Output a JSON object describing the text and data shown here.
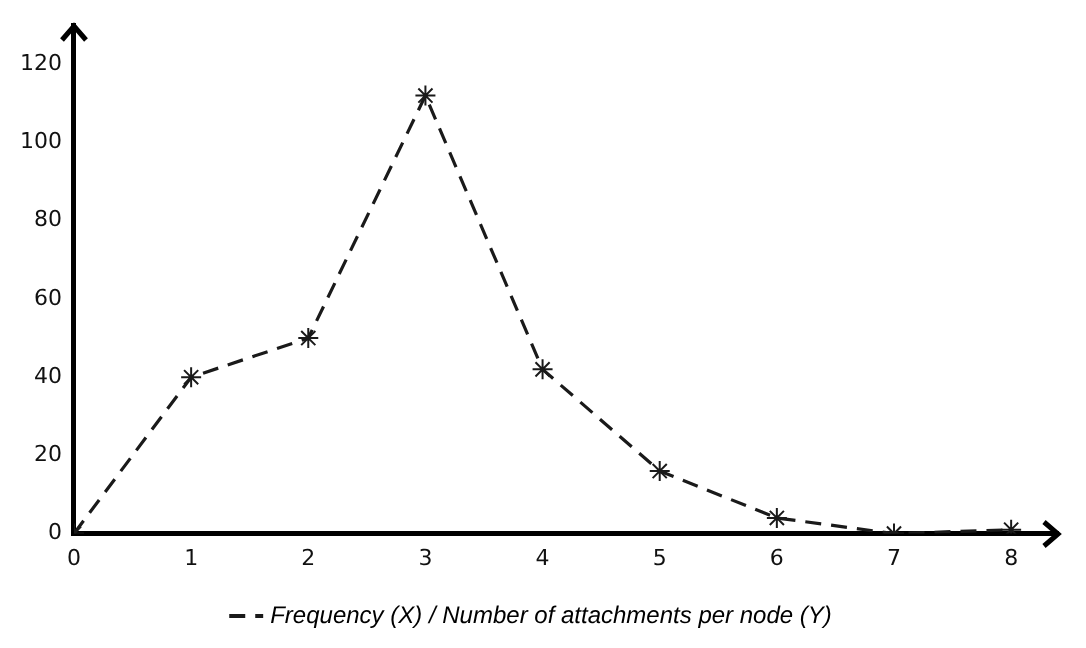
{
  "chart_data": {
    "type": "line",
    "legend": "bottom",
    "marker": "cross",
    "line_style": "dashed",
    "grid": false,
    "x": [
      0,
      1,
      2,
      3,
      4,
      5,
      6,
      7,
      8
    ],
    "series": [
      {
        "name": "Frequency (X) / Number of attachments per node (Y)",
        "color": "#1a1a1a",
        "values": [
          0,
          40,
          50,
          112,
          42,
          16,
          4,
          0,
          1
        ]
      }
    ],
    "xlim": [
      0,
      8.4
    ],
    "xticks": [
      0,
      1,
      2,
      3,
      4,
      5,
      6,
      7,
      8
    ],
    "ylim": [
      0,
      130
    ],
    "yticks": [
      0,
      20,
      40,
      60,
      80,
      100,
      120
    ]
  }
}
